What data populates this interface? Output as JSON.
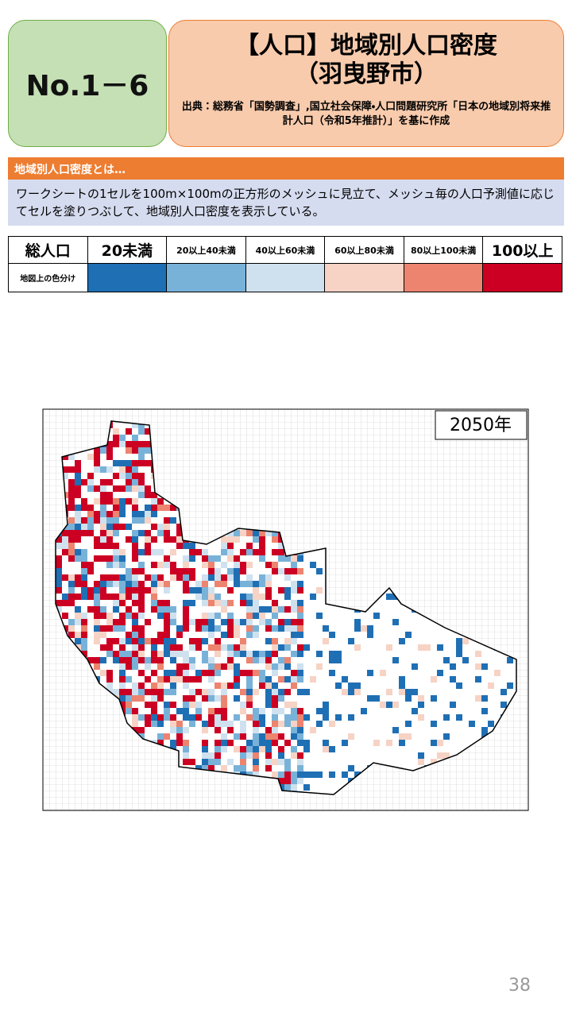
{
  "header": {
    "number": "No.1－6",
    "title": "【人口】地域別人口密度",
    "subtitle": "（羽曳野市）",
    "source": "出典：総務省「国勢調査」,国立社会保障・人口問題研究所「日本の地域別将来推計人口（令和5年推計）」を基に作成"
  },
  "explanation": {
    "heading": "地域別人口密度とは…",
    "body": "ワークシートの1セルを100m×100mの正方形のメッシュに見立て、メッシュ毎の人口予測値に応じてセルを塗りつぶして、地域別人口密度を表示している。"
  },
  "legend": {
    "header": "総人口",
    "row_label": "地図上の色分け",
    "classes": [
      {
        "label": "20未満",
        "color": "#1f6fb4"
      },
      {
        "label": "20以上40未満",
        "color": "#79b2d8"
      },
      {
        "label": "40以上60未満",
        "color": "#cfe1ef"
      },
      {
        "label": "60以上80未満",
        "color": "#f6d3c5"
      },
      {
        "label": "80以上100未満",
        "color": "#ec8470"
      },
      {
        "label": "100以上",
        "color": "#cc0022"
      }
    ]
  },
  "map": {
    "year": "2050年"
  },
  "page_number": "38"
}
